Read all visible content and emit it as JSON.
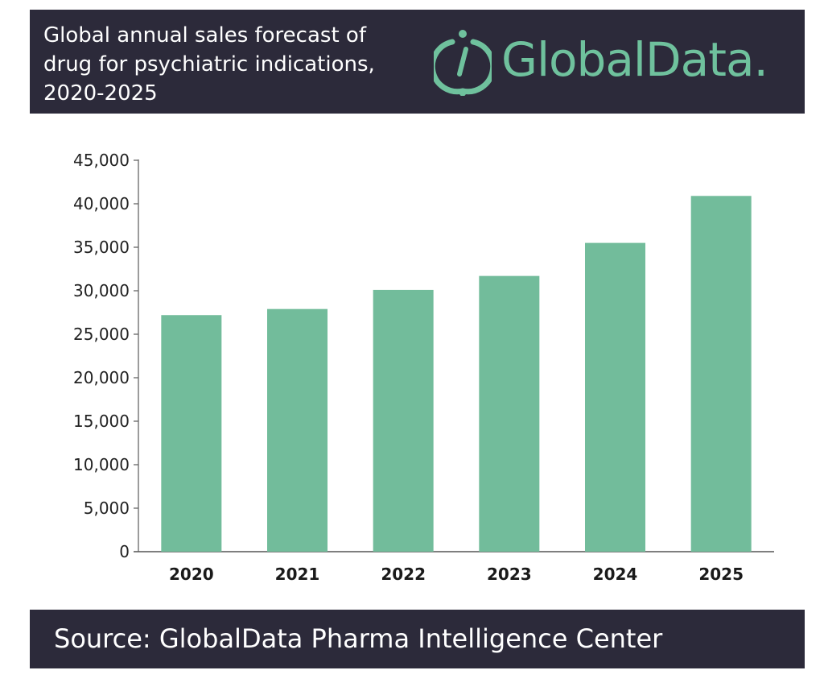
{
  "header": {
    "title": "Global annual sales forecast of\ndrug for psychiatric indications,\n2020-2025",
    "background": "#2c2a3a"
  },
  "logo": {
    "text": "GlobalData.",
    "color": "#6fc19d",
    "icon": "globaldata-logo-icon"
  },
  "chart_data": {
    "type": "bar",
    "title": "Global annual sales forecast of drug for psychiatric indications, 2020-2025",
    "xlabel": "",
    "ylabel": "",
    "categories": [
      "2020",
      "2021",
      "2022",
      "2023",
      "2024",
      "2025"
    ],
    "values": [
      27200,
      27900,
      30100,
      31700,
      35500,
      40900
    ],
    "ylim": [
      0,
      45000
    ],
    "y_ticks": [
      0,
      5000,
      10000,
      15000,
      20000,
      25000,
      30000,
      35000,
      40000,
      45000
    ],
    "y_tick_labels": [
      "0",
      "5,000",
      "10,000",
      "15,000",
      "20,000",
      "25,000",
      "30,000",
      "35,000",
      "40,000",
      "45,000"
    ],
    "grid": false,
    "legend": "none",
    "bar_color": "#72bc9b"
  },
  "footer": {
    "source": "Source:  GlobalData Pharma Intelligence Center"
  }
}
